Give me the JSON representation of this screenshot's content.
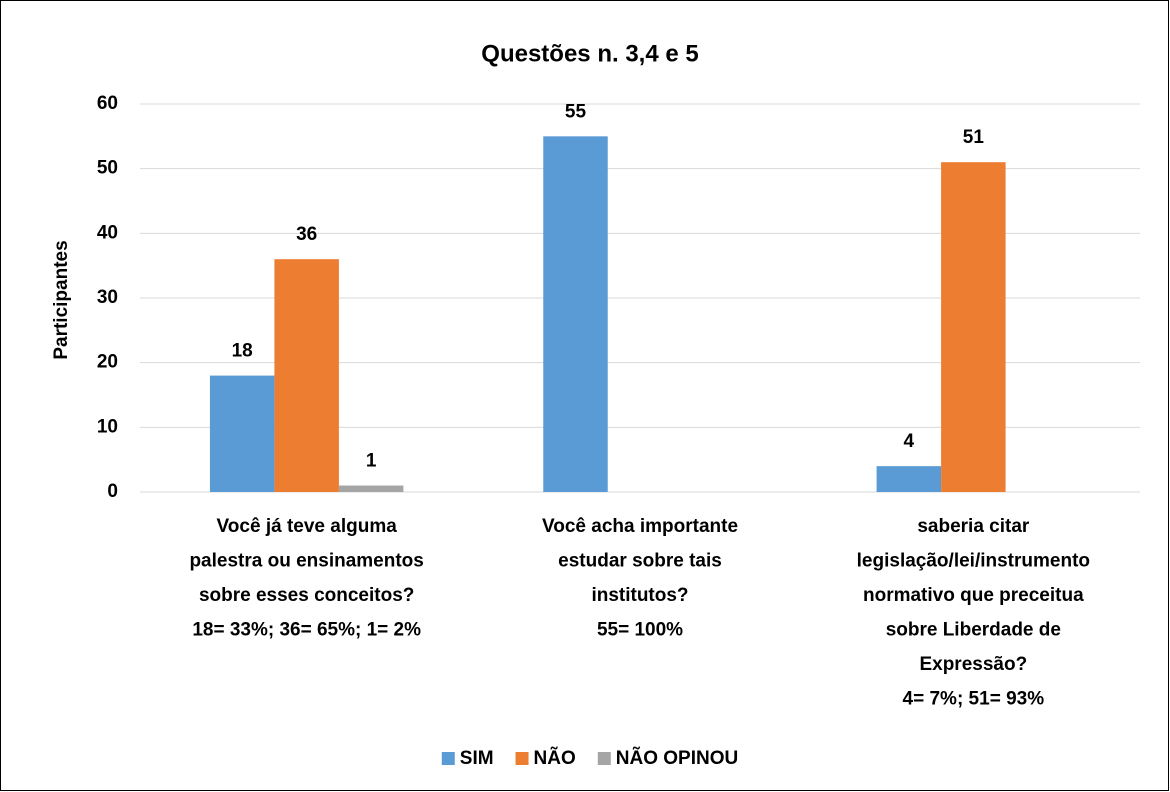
{
  "chart_data": {
    "type": "bar",
    "title": "Questões n. 3,4 e 5",
    "y_label": "Participantes",
    "categories": [
      [
        "Você já teve alguma",
        "palestra ou ensinamentos",
        "sobre esses conceitos?",
        "18= 33%; 36= 65%; 1= 2%"
      ],
      [
        "Você acha importante",
        "estudar sobre tais",
        "institutos?",
        "55= 100%"
      ],
      [
        "saberia citar",
        "legislação/lei/instrumento",
        "normativo que preceitua",
        "sobre Liberdade de",
        "Expressão?",
        "4= 7%; 51= 93%"
      ]
    ],
    "series": [
      {
        "name": "SIM",
        "color": "#5b9bd5",
        "values": [
          18,
          55,
          4
        ]
      },
      {
        "name": "NÃO",
        "color": "#ed7d31",
        "values": [
          36,
          null,
          51
        ]
      },
      {
        "name": "NÃO OPINOU",
        "color": "#a5a5a5",
        "values": [
          1,
          null,
          null
        ]
      }
    ],
    "ylim": [
      0,
      60
    ],
    "yticks": [
      0,
      10,
      20,
      30,
      40,
      50,
      60
    ],
    "grid": true,
    "legend": "bottom"
  }
}
